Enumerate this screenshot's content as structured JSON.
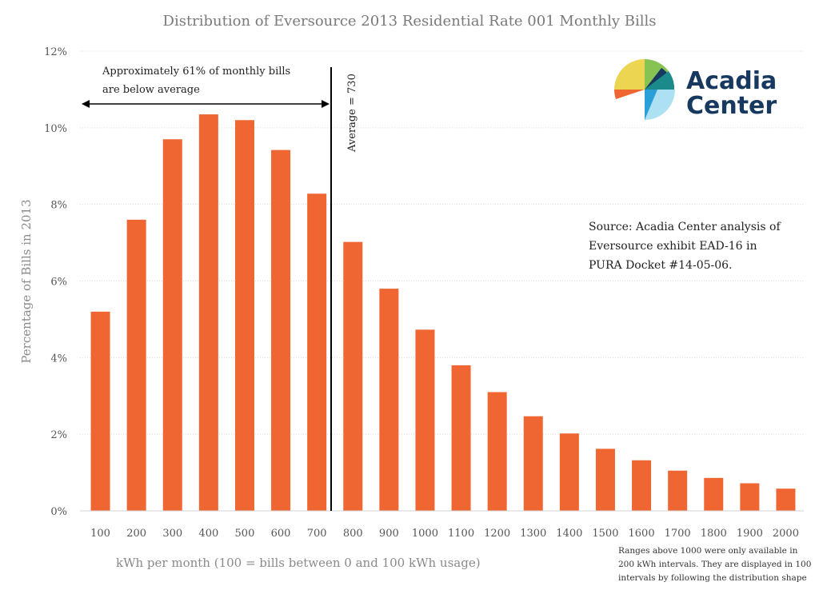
{
  "chart_data": {
    "type": "bar",
    "title": "Distribution of Eversource 2013 Residential Rate 001 Monthly Bills",
    "xlabel": "kWh per month (100 = bills between 0 and 100 kWh usage)",
    "ylabel": "Percentage of Bills in 2013",
    "ylim": [
      0,
      12
    ],
    "yticks": [
      "0%",
      "2%",
      "4%",
      "6%",
      "8%",
      "10%",
      "12%"
    ],
    "categories": [
      "100",
      "200",
      "300",
      "400",
      "500",
      "600",
      "700",
      "800",
      "900",
      "1000",
      "1100",
      "1200",
      "1300",
      "1400",
      "1500",
      "1600",
      "1700",
      "1800",
      "1900",
      "2000"
    ],
    "values": [
      5.2,
      7.6,
      9.7,
      10.35,
      10.2,
      9.42,
      8.28,
      7.02,
      5.8,
      4.73,
      3.8,
      3.1,
      2.47,
      2.02,
      1.62,
      1.32,
      1.05,
      0.86,
      0.72,
      0.58
    ],
    "bar_color": "#f06632",
    "grid": true,
    "average_line": {
      "label": "Average = 730",
      "value": 730
    },
    "annotation": {
      "line1": "Approximately 61% of monthly bills",
      "line2": "are below average"
    },
    "source_note": {
      "line1": "Source: Acadia Center analysis of",
      "line2": "Eversource exhibit EAD-16 in",
      "line3": "PURA Docket #14-05-06."
    },
    "footnote": {
      "line1": "Ranges above 1000 were only available in",
      "line2": "200 kWh intervals. They are displayed in 100",
      "line3": "intervals by following the distribution shape"
    }
  },
  "logo": {
    "line1": "Acadia",
    "line2": "Center",
    "colors": {
      "yellow": "#ecd651",
      "green": "#86c353",
      "teal": "#1b8a8a",
      "navy": "#17385f",
      "orange": "#f06632",
      "blue": "#2a9fd8",
      "lightblue": "#aee0f4"
    }
  }
}
